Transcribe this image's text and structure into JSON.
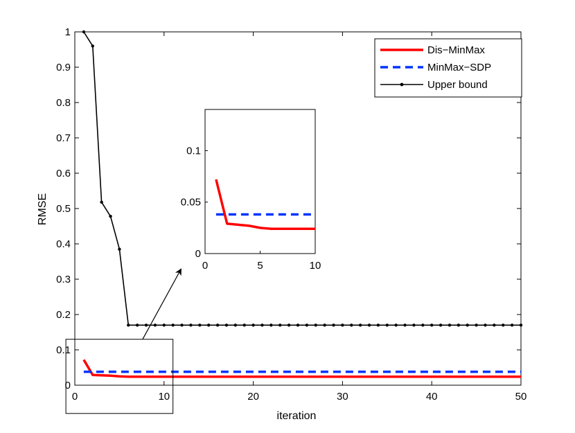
{
  "chart_data": [
    {
      "type": "line",
      "xlabel": "iteration",
      "ylabel": "RMSE",
      "xlim": [
        0,
        50
      ],
      "ylim": [
        0,
        1
      ],
      "xticks": [
        "0",
        "10",
        "20",
        "30",
        "40",
        "50"
      ],
      "yticks": [
        "0",
        "0.1",
        "0.2",
        "0.3",
        "0.4",
        "0.5",
        "0.6",
        "0.7",
        "0.8",
        "0.9",
        "1"
      ],
      "grid": false,
      "legend_position": "top-right",
      "series": [
        {
          "name": "Dis−MinMax",
          "color": "#ff0000",
          "style": "solid",
          "x": [
            1,
            2,
            3,
            4,
            5,
            6,
            7,
            8,
            9,
            10,
            11,
            12,
            13,
            14,
            15,
            16,
            17,
            18,
            19,
            20,
            21,
            22,
            23,
            24,
            25,
            26,
            27,
            28,
            29,
            30,
            31,
            32,
            33,
            34,
            35,
            36,
            37,
            38,
            39,
            40,
            41,
            42,
            43,
            44,
            45,
            46,
            47,
            48,
            49,
            50
          ],
          "y": [
            0.072,
            0.029,
            0.028,
            0.027,
            0.025,
            0.024,
            0.024,
            0.024,
            0.024,
            0.024,
            0.024,
            0.024,
            0.024,
            0.024,
            0.024,
            0.024,
            0.024,
            0.024,
            0.024,
            0.024,
            0.024,
            0.024,
            0.024,
            0.024,
            0.024,
            0.024,
            0.024,
            0.024,
            0.024,
            0.024,
            0.024,
            0.024,
            0.024,
            0.024,
            0.024,
            0.024,
            0.024,
            0.024,
            0.024,
            0.024,
            0.024,
            0.024,
            0.024,
            0.024,
            0.024,
            0.024,
            0.024,
            0.024,
            0.024,
            0.024
          ]
        },
        {
          "name": "MinMax−SDP",
          "color": "#0033ff",
          "style": "dashed",
          "x": [
            1,
            50
          ],
          "y": [
            0.038,
            0.038
          ]
        },
        {
          "name": "Upper bound",
          "color": "#000000",
          "style": "solid-markers",
          "x": [
            1,
            2,
            3,
            4,
            5,
            6,
            7,
            8,
            9,
            10,
            11,
            12,
            13,
            14,
            15,
            16,
            17,
            18,
            19,
            20,
            21,
            22,
            23,
            24,
            25,
            26,
            27,
            28,
            29,
            30,
            31,
            32,
            33,
            34,
            35,
            36,
            37,
            38,
            39,
            40,
            41,
            42,
            43,
            44,
            45,
            46,
            47,
            48,
            49,
            50
          ],
          "y": [
            1.0,
            0.96,
            0.518,
            0.478,
            0.385,
            0.17,
            0.17,
            0.17,
            0.17,
            0.17,
            0.17,
            0.17,
            0.17,
            0.17,
            0.17,
            0.17,
            0.17,
            0.17,
            0.17,
            0.17,
            0.17,
            0.17,
            0.17,
            0.17,
            0.17,
            0.17,
            0.17,
            0.17,
            0.17,
            0.17,
            0.17,
            0.17,
            0.17,
            0.17,
            0.17,
            0.17,
            0.17,
            0.17,
            0.17,
            0.17,
            0.17,
            0.17,
            0.17,
            0.17,
            0.17,
            0.17,
            0.17,
            0.17,
            0.17,
            0.17
          ]
        }
      ]
    },
    {
      "type": "line",
      "role": "inset-zoom",
      "xlim": [
        0,
        10
      ],
      "ylim": [
        0,
        0.14
      ],
      "xticks": [
        "0",
        "5",
        "10"
      ],
      "yticks": [
        "0",
        "0.05",
        "0.1"
      ],
      "zoom_region": {
        "x": [
          -1,
          11
        ],
        "y": [
          -0.08,
          0.13
        ]
      },
      "series": [
        {
          "name": "Dis−MinMax",
          "color": "#ff0000",
          "x": [
            1,
            2,
            3,
            4,
            5,
            6,
            7,
            8,
            9,
            10
          ],
          "y": [
            0.072,
            0.029,
            0.028,
            0.027,
            0.025,
            0.024,
            0.024,
            0.024,
            0.024,
            0.024
          ]
        },
        {
          "name": "MinMax−SDP",
          "color": "#0033ff",
          "x": [
            1,
            10
          ],
          "y": [
            0.038,
            0.038
          ]
        }
      ]
    }
  ]
}
